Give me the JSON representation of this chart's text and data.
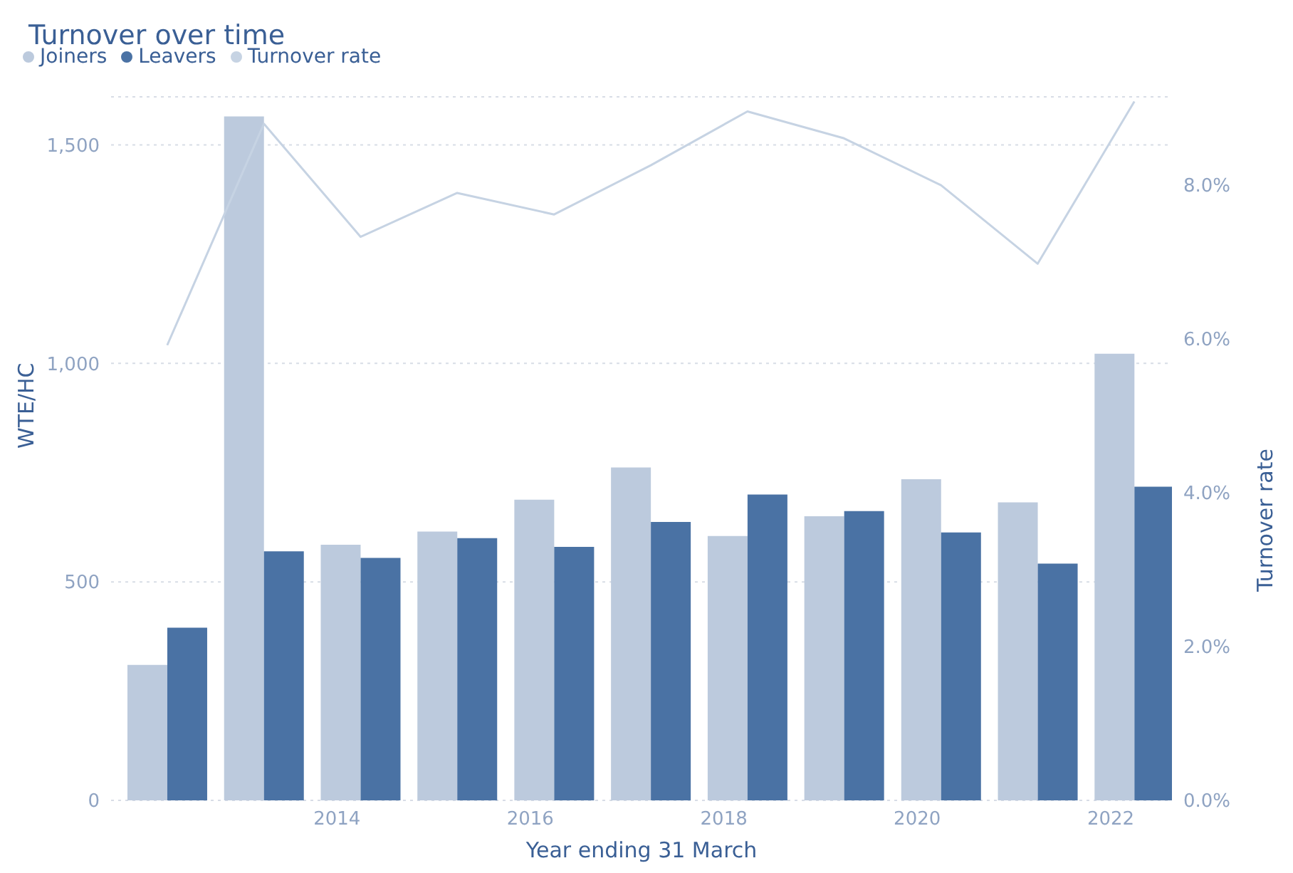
{
  "chart_data": {
    "type": "bar",
    "title": "Turnover over time",
    "xlabel": "Year ending 31 March",
    "ylabel": "WTE/HC",
    "y2label": "Turnover rate",
    "x": [
      "2012-03-31",
      "2013-03-31",
      "2014-03-31",
      "2015-03-31",
      "2016-03-31",
      "2017-03-31",
      "2018-03-31",
      "2019-03-31",
      "2020-03-31",
      "2021-03-31",
      "2022-03-31"
    ],
    "series": [
      {
        "name": "Joiners",
        "color": "#bccadd",
        "values": [
          310,
          1565,
          585,
          615,
          688,
          762,
          605,
          650,
          735,
          682,
          1022
        ]
      },
      {
        "name": "Leavers",
        "color": "#4a72a4",
        "values": [
          395,
          570,
          555,
          600,
          580,
          637,
          700,
          662,
          613,
          542,
          718
        ]
      },
      {
        "name": "Turnover rate",
        "type": "line",
        "axis": "y2",
        "color": "#c6d3e3",
        "values": [
          5.92,
          8.8,
          7.33,
          7.9,
          7.62,
          8.26,
          8.96,
          8.61,
          8.0,
          6.98,
          9.09
        ]
      }
    ],
    "xlim": [
      "2011-09-01",
      "2022-08-20"
    ],
    "xticks": [
      "2014",
      "2016",
      "2018",
      "2020",
      "2022"
    ],
    "ylim": [
      0,
      1610
    ],
    "yticks": [
      0,
      500,
      {
        "value": 1000,
        "label": "1,000"
      },
      {
        "value": 1500,
        "label": "1,500"
      }
    ],
    "y2lim": [
      0,
      9.15
    ],
    "y2ticks": [
      {
        "value": 0,
        "label": "0.0%"
      },
      {
        "value": 2,
        "label": "2.0%"
      },
      {
        "value": 4,
        "label": "4.0%"
      },
      {
        "value": 6,
        "label": "6.0%"
      },
      {
        "value": 8,
        "label": "8.0%"
      }
    ],
    "grid": "y",
    "legend": "top left",
    "marker": "none",
    "line_style": "solid"
  }
}
